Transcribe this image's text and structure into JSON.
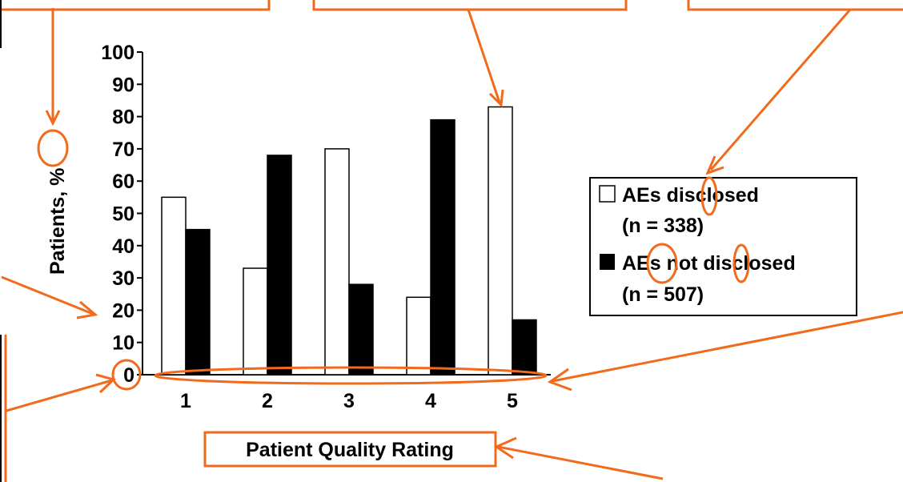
{
  "chart_data": {
    "type": "bar",
    "title": "",
    "xlabel": "Patient Quality Rating",
    "ylabel": "Patients, %",
    "categories": [
      "1",
      "2",
      "3",
      "4",
      "5"
    ],
    "ylim": [
      0,
      100
    ],
    "yticks": [
      "0",
      "10",
      "20",
      "30",
      "40",
      "50",
      "60",
      "70",
      "80",
      "90",
      "100"
    ],
    "grid": false,
    "legend_position": "right",
    "series": [
      {
        "name": "AEs disclosed",
        "sample": "(n = 338)",
        "fill": "#ffffff",
        "values": [
          55,
          33,
          70,
          24,
          83
        ]
      },
      {
        "name": "AEs not disclosed",
        "sample": "(n = 507)",
        "fill": "#000000",
        "values": [
          45,
          68,
          28,
          79,
          17
        ]
      }
    ]
  },
  "colors": {
    "annotation": "#f26a1b",
    "axis": "#000000",
    "background": "#ffffff"
  }
}
